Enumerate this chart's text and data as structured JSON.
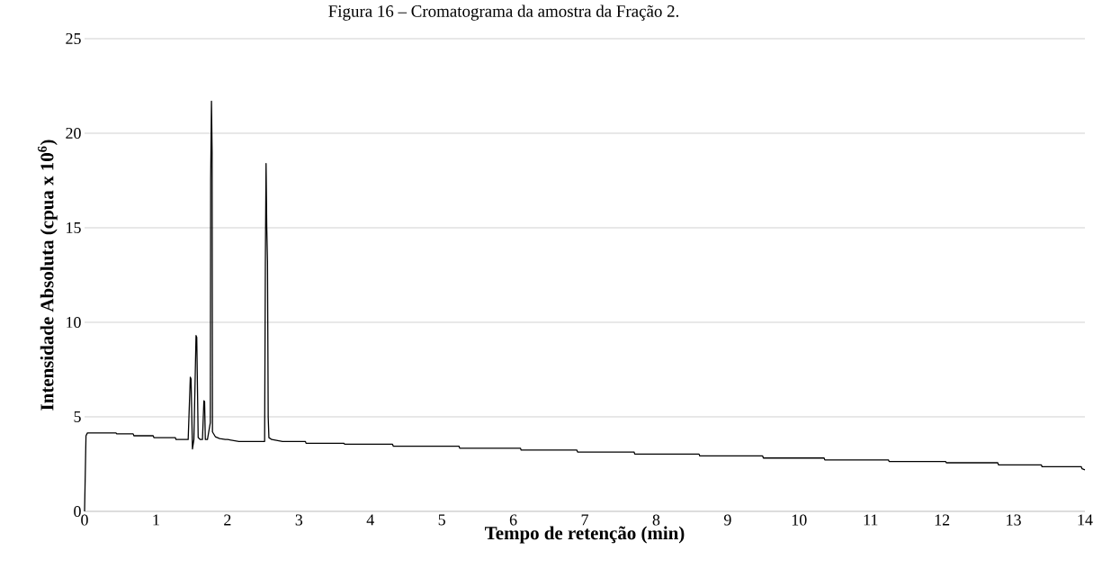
{
  "chart_data": {
    "type": "line",
    "title": "Figura 16 – Cromatograma da amostra da Fração 2.",
    "xlabel": "Tempo de retenção (min)",
    "ylabel": "Intensidade Absoluta (cpua x 10$^{6}$)",
    "xlim": [
      0,
      14
    ],
    "ylim": [
      0,
      25
    ],
    "xticks": [
      0,
      1,
      2,
      3,
      4,
      5,
      6,
      7,
      8,
      9,
      10,
      11,
      12,
      13,
      14
    ],
    "yticks": [
      0,
      5,
      10,
      15,
      20,
      25
    ],
    "grid": "y",
    "marker": "none",
    "line_style": "solid",
    "series": [
      {
        "color": "#000000",
        "x": [
          0,
          0.02,
          0.04,
          0.44,
          0.45,
          0.68,
          0.69,
          0.96,
          0.97,
          1.27,
          1.28,
          1.45,
          1.48,
          1.49,
          1.51,
          1.53,
          1.56,
          1.57,
          1.59,
          1.62,
          1.65,
          1.67,
          1.68,
          1.69,
          1.72,
          1.76,
          1.765,
          1.776,
          1.785,
          1.79,
          1.83,
          1.89,
          1.97,
          2.0,
          2.16,
          2.52,
          2.53,
          2.54,
          2.55,
          2.56,
          2.57,
          2.58,
          2.62,
          2.77,
          3.09,
          3.1,
          3.63,
          3.64,
          4.31,
          4.32,
          5.24,
          5.25,
          6.1,
          6.11,
          6.89,
          6.9,
          7.69,
          7.7,
          8.6,
          8.61,
          9.49,
          9.5,
          10.35,
          10.36,
          11.25,
          11.26,
          12.05,
          12.06,
          12.78,
          12.79,
          13.39,
          13.4,
          13.95,
          13.96,
          14
        ],
        "values": [
          0,
          4.0,
          4.15,
          4.15,
          4.1,
          4.1,
          4.0,
          4.0,
          3.9,
          3.9,
          3.8,
          3.8,
          7.1,
          7.0,
          3.3,
          3.8,
          9.3,
          9.2,
          3.9,
          3.8,
          3.8,
          5.85,
          5.8,
          3.8,
          3.8,
          4.7,
          17.6,
          21.7,
          19,
          4.2,
          3.95,
          3.85,
          3.8,
          3.8,
          3.7,
          3.7,
          13,
          18.4,
          15,
          13.2,
          5.0,
          3.9,
          3.8,
          3.7,
          3.7,
          3.6,
          3.6,
          3.55,
          3.55,
          3.45,
          3.45,
          3.34,
          3.34,
          3.24,
          3.24,
          3.14,
          3.14,
          3.03,
          3.03,
          2.93,
          2.93,
          2.82,
          2.82,
          2.72,
          2.72,
          2.64,
          2.64,
          2.57,
          2.57,
          2.46,
          2.46,
          2.36,
          2.36,
          2.25,
          2.2
        ]
      }
    ]
  }
}
